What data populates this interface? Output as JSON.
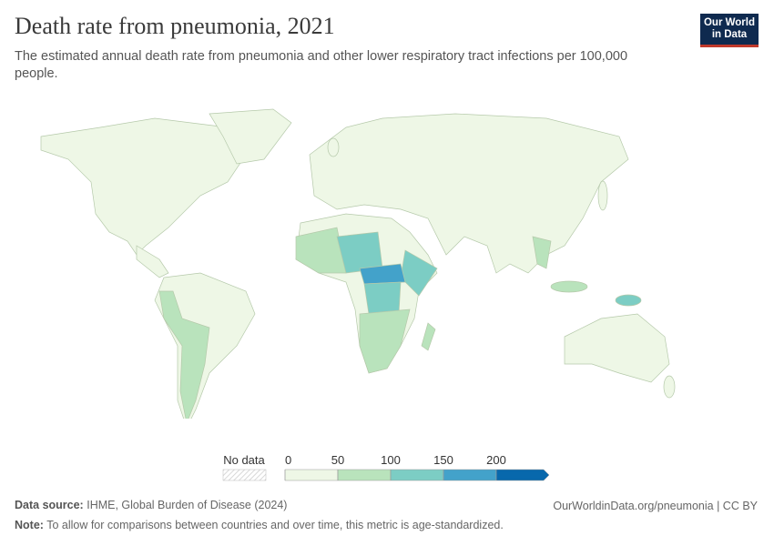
{
  "header": {
    "title": "Death rate from pneumonia, 2021",
    "subtitle": "The estimated annual death rate from pneumonia and other lower respiratory tract infections per 100,000 people.",
    "logo": [
      "Our World",
      "in Data"
    ]
  },
  "legend": {
    "no_data_label": "No data",
    "ticks": [
      0,
      50,
      100,
      150,
      200
    ],
    "colors": [
      "#eef7e6",
      "#b9e3bc",
      "#7ccdc4",
      "#43a2ca",
      "#0868ac"
    ]
  },
  "footer": {
    "source_label": "Data source:",
    "source": "IHME, Global Burden of Disease (2024)",
    "url": "OurWorldinData.org/pneumonia | CC BY",
    "note_label": "Note:",
    "note": "To allow for comparisons between countries and over time, this metric is age-standardized."
  }
}
